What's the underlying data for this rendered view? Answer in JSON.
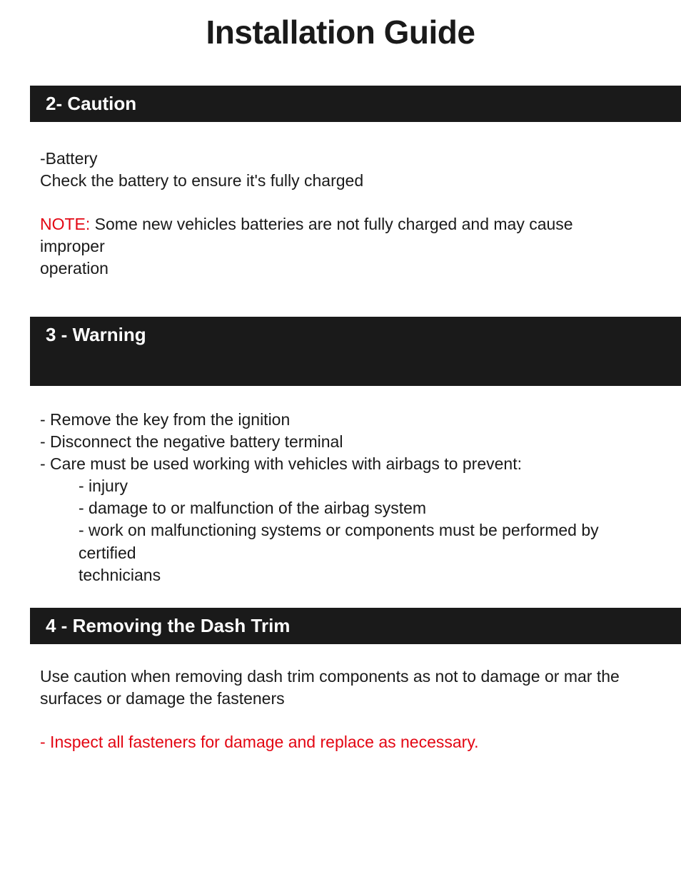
{
  "page": {
    "title": "Installation Guide"
  },
  "colors": {
    "text": "#1a1a1a",
    "header_bg": "#1a1a1a",
    "header_text": "#ffffff",
    "accent_red": "#e30613",
    "background": "#ffffff"
  },
  "typography": {
    "title_fontsize": 46,
    "title_weight": 700,
    "header_fontsize": 26,
    "header_weight": 700,
    "body_fontsize": 23
  },
  "sections": [
    {
      "header": "2- Caution",
      "body": {
        "line1": "-Battery",
        "line2": "Check the battery to ensure it's fully charged",
        "note_label": "NOTE:",
        "note_text": " Some new vehicles batteries are not fully charged and may cause improper",
        "note_text2": " operation"
      }
    },
    {
      "header": "3 -  Warning",
      "body": {
        "items": [
          "- Remove the key from the ignition",
          "- Disconnect the negative battery terminal",
          "- Care must be used working with vehicles with airbags to prevent:"
        ],
        "subitems": [
          "- injury",
          "- damage to or malfunction of the airbag system",
          "- work on malfunctioning systems or components must be performed by certified",
          "  technicians"
        ]
      }
    },
    {
      "header": "4 - Removing the Dash Trim",
      "body": {
        "para1": "Use caution when removing dash trim components as not to damage or mar the surfaces or damage the fasteners",
        "red_line": "- Inspect all fasteners for damage and replace as necessary."
      }
    }
  ]
}
